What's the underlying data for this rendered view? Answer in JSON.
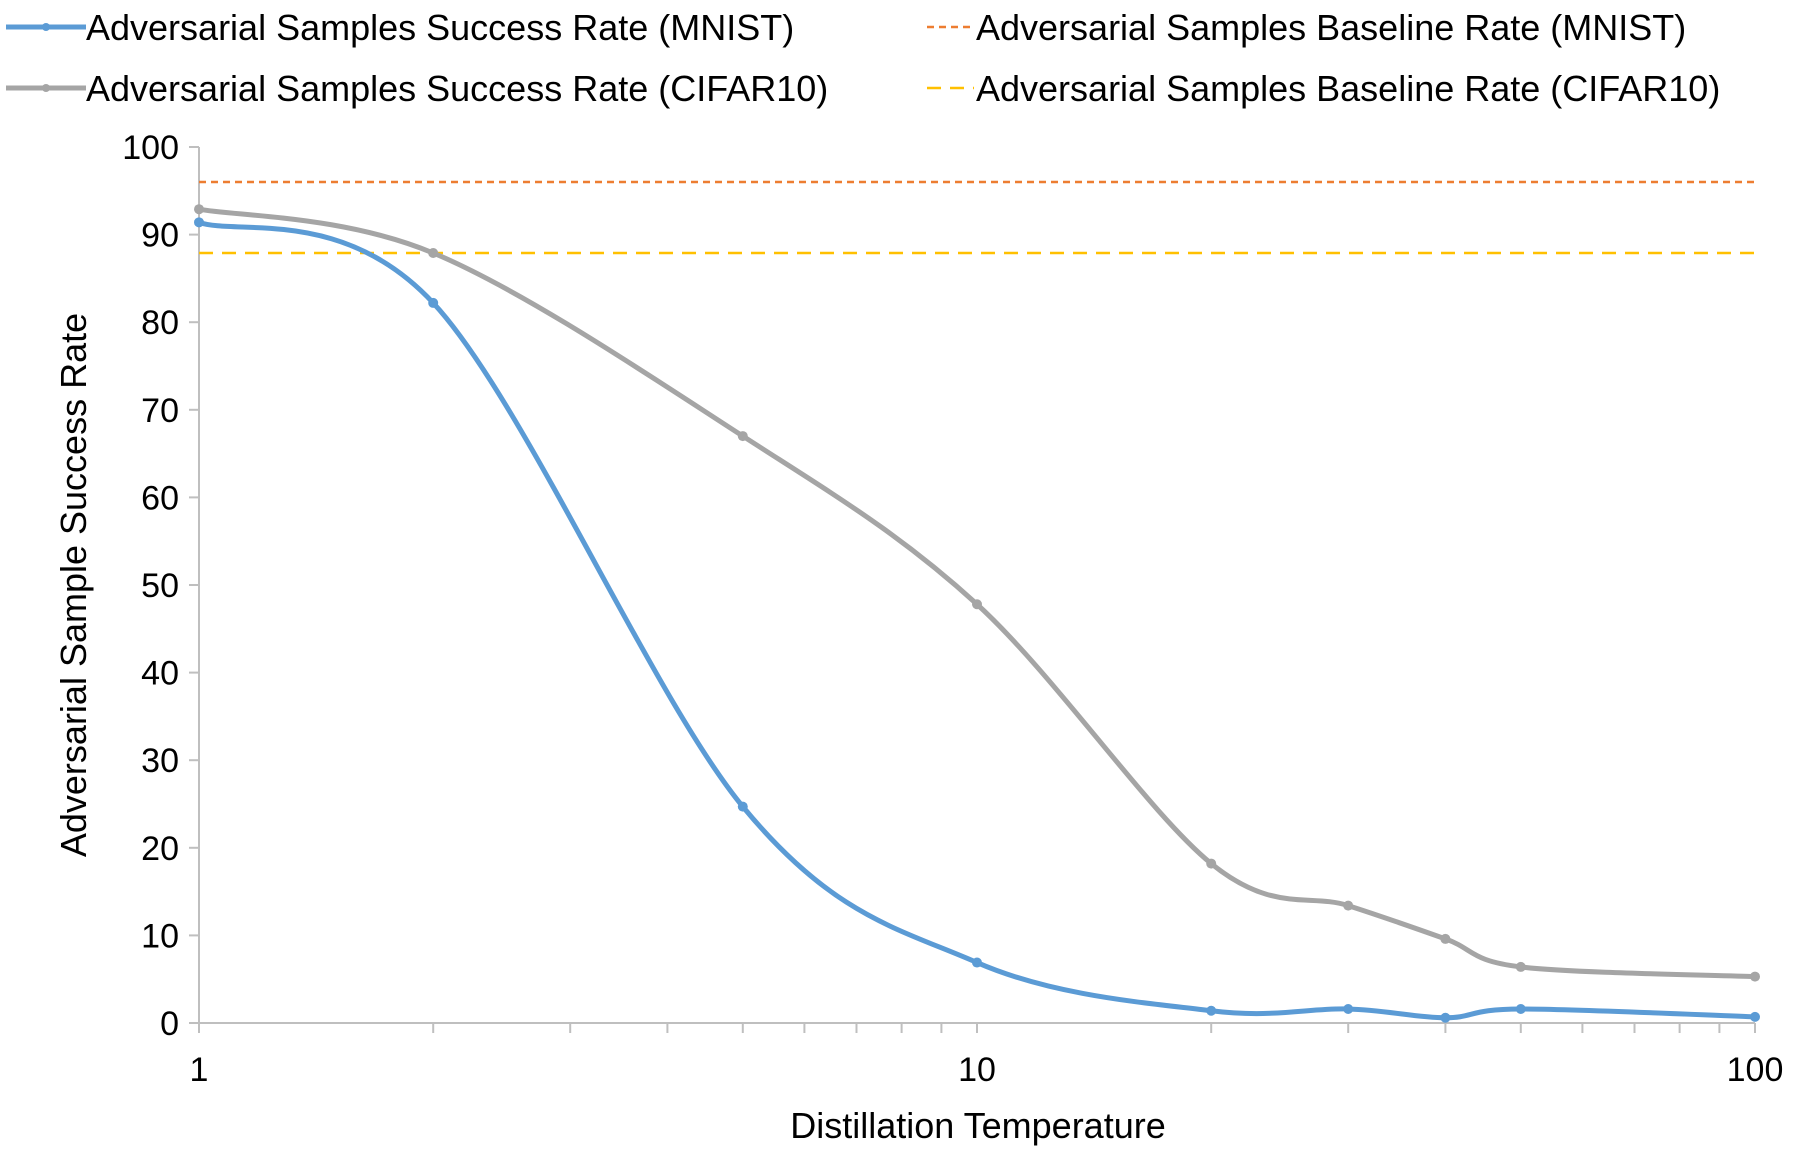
{
  "chart_data": {
    "type": "line",
    "title": "",
    "xlabel": "Distillation Temperature",
    "ylabel": "Adversarial Sample Success Rate",
    "x_scale": "log",
    "xlim": [
      1,
      100
    ],
    "ylim": [
      0,
      100
    ],
    "x_ticks": [
      {
        "value": 1,
        "label": "1"
      },
      {
        "value": 10,
        "label": "10"
      },
      {
        "value": 100,
        "label": "100"
      }
    ],
    "y_ticks": [
      {
        "value": 0,
        "label": "0"
      },
      {
        "value": 10,
        "label": "10"
      },
      {
        "value": 20,
        "label": "20"
      },
      {
        "value": 30,
        "label": "30"
      },
      {
        "value": 40,
        "label": "40"
      },
      {
        "value": 50,
        "label": "50"
      },
      {
        "value": 60,
        "label": "60"
      },
      {
        "value": 70,
        "label": "70"
      },
      {
        "value": 80,
        "label": "80"
      },
      {
        "value": 90,
        "label": "90"
      },
      {
        "value": 100,
        "label": "100"
      }
    ],
    "grid": false,
    "legend_position": "top",
    "series": [
      {
        "name": "Adversarial Samples Success Rate (MNIST)",
        "color": "#5b9bd5",
        "style": "solid",
        "markers": true,
        "x": [
          1,
          2,
          5,
          10,
          20,
          30,
          40,
          50,
          100
        ],
        "y": [
          91.4,
          82.2,
          24.7,
          6.9,
          1.4,
          1.6,
          0.6,
          1.6,
          0.7
        ]
      },
      {
        "name": "Adversarial Samples Baseline Rate (MNIST)",
        "color": "#ed7d31",
        "style": "short-dash",
        "markers": false,
        "x": [
          1,
          100
        ],
        "y": [
          96,
          96
        ]
      },
      {
        "name": "Adversarial Samples Success Rate (CIFAR10)",
        "color": "#a5a5a5",
        "style": "solid",
        "markers": true,
        "x": [
          1,
          2,
          5,
          10,
          20,
          30,
          40,
          50,
          100
        ],
        "y": [
          92.9,
          87.9,
          67.0,
          47.8,
          18.2,
          13.4,
          9.6,
          6.4,
          5.3
        ]
      },
      {
        "name": "Adversarial Samples Baseline Rate (CIFAR10)",
        "color": "#ffc000",
        "style": "dash",
        "markers": false,
        "x": [
          1,
          100
        ],
        "y": [
          87.9,
          87.9
        ]
      }
    ]
  }
}
